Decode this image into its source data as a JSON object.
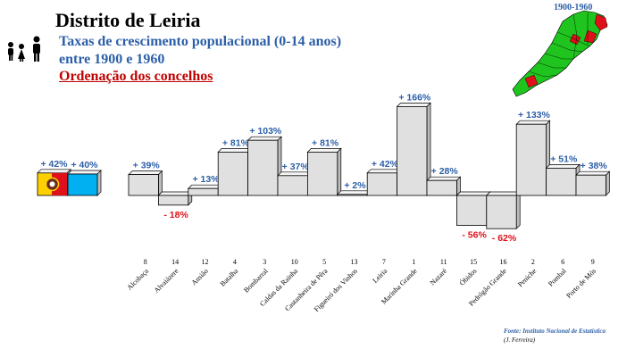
{
  "header": {
    "title": "Distrito de Leiria",
    "subtitle_line1": "Taxas de crescimento populacional (0-14 anos)",
    "subtitle_line2": "entre 1900 e 1960",
    "subtitle_line3": "Ordenação dos concelhos"
  },
  "map": {
    "label": "1900-1960",
    "land_color": "#1fc41f",
    "highlight_color": "#e0101a"
  },
  "footer": {
    "source": "Fonte: Instituto Nacional de Estatística",
    "author": "(J. Ferreira)"
  },
  "colors": {
    "bar": "#e0e0e0",
    "positive_label": "#2c5fa8",
    "negative_label": "#e0101a",
    "summary_blue": "#00b0f0"
  },
  "chart_data": {
    "type": "bar",
    "summary": [
      {
        "label": "+ 42%",
        "value": 42,
        "icon": "district-flag-icon"
      },
      {
        "label": "+ 40%",
        "value": 40,
        "icon": "blue-box"
      }
    ],
    "categories": [
      "Alcobaça",
      "Alvaiázere",
      "Ansião",
      "Batalha",
      "Bombarral",
      "Caldas da Rainha",
      "Castanheira de Pêra",
      "Figueiró dos Vinhos",
      "Leiria",
      "Marinha Grande",
      "Nazaré",
      "Óbidos",
      "Pedrógão Grande",
      "Peniche",
      "Pombal",
      "Porto de Mós"
    ],
    "ranks": [
      "8",
      "14",
      "12",
      "4",
      "3",
      "10",
      "5",
      "13",
      "7",
      "1",
      "11",
      "15",
      "16",
      "2",
      "6",
      "9"
    ],
    "values": [
      39,
      -18,
      13,
      81,
      103,
      37,
      81,
      2,
      42,
      166,
      28,
      -56,
      -62,
      133,
      51,
      38
    ],
    "value_labels": [
      "+ 39%",
      "- 18%",
      "+ 13%",
      "+ 81%",
      "+ 103%",
      "+ 37%",
      "+ 81%",
      "+ 2%",
      "+ 42%",
      "+ 166%",
      "+ 28%",
      "- 56%",
      "- 62%",
      "+ 133%",
      "+ 51%",
      "+ 38%"
    ]
  }
}
